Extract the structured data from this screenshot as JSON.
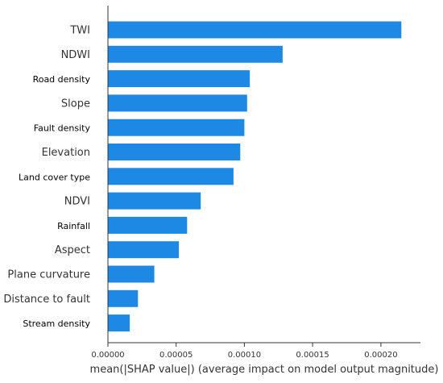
{
  "chart_data": {
    "type": "bar",
    "orientation": "horizontal",
    "categories": [
      "TWI",
      "NDWI",
      "Road density",
      "Slope",
      "Fault density",
      "Elevation",
      "Land cover type",
      "NDVI",
      "Rainfall",
      "Aspect",
      "Plane curvature",
      "Distance to fault",
      "Stream density"
    ],
    "values": [
      0.000215,
      0.000128,
      0.000104,
      0.000102,
      0.0001,
      9.7e-05,
      9.2e-05,
      6.8e-05,
      5.8e-05,
      5.2e-05,
      3.4e-05,
      2.2e-05,
      1.6e-05
    ],
    "xlabel": "mean(|SHAP value|) (average impact on model output magnitude)",
    "ylabel": "",
    "xlim": [
      0,
      0.000229
    ],
    "xticks": [
      0.0,
      5e-05,
      0.0001,
      0.00015,
      0.0002
    ],
    "xtick_labels": [
      "0.00000",
      "0.00005",
      "0.00010",
      "0.00015",
      "0.00020"
    ],
    "bar_color": "#1e88e5",
    "grid": false,
    "legend": "none"
  }
}
